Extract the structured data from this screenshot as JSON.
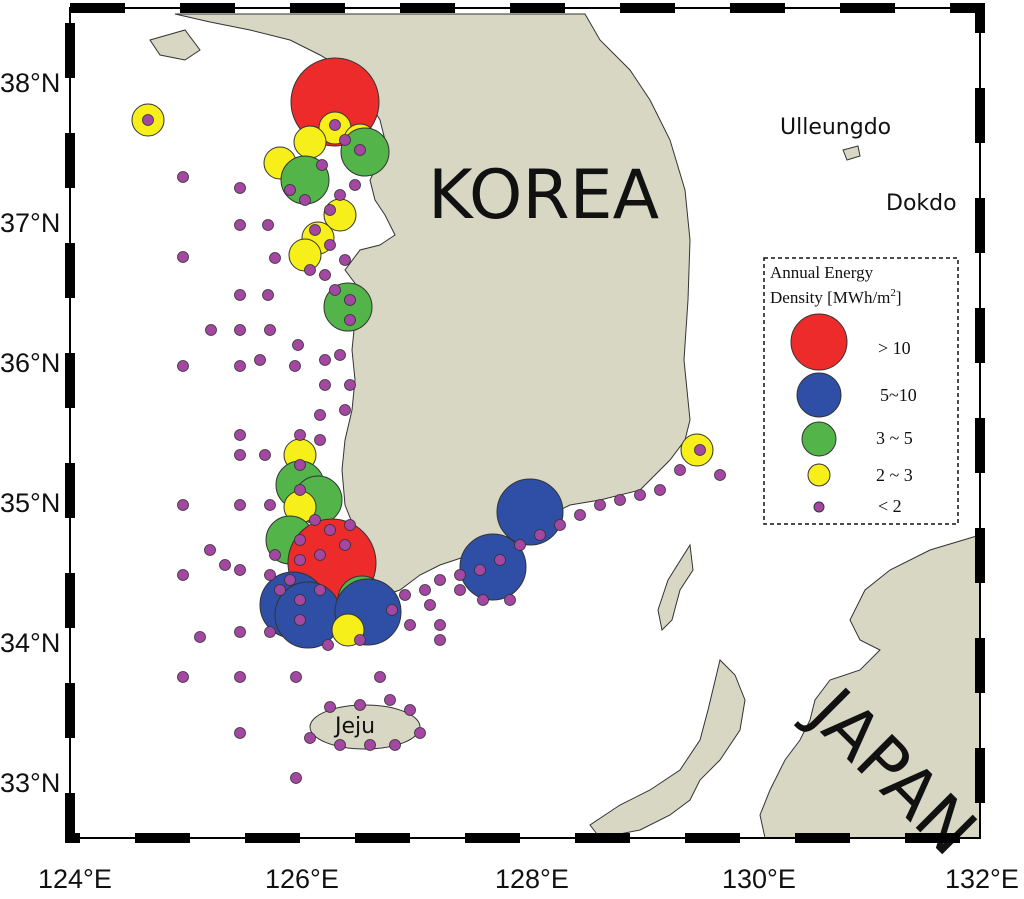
{
  "map": {
    "labels": {
      "korea": "KOREA",
      "japan": "JAPAN",
      "jeju": "Jeju",
      "ulleungdo": "Ulleungdo",
      "dokdo": "Dokdo"
    },
    "axes": {
      "lat_ticks": [
        "38°N",
        "37°N",
        "36°N",
        "35°N",
        "34°N",
        "33°N"
      ],
      "lon_ticks": [
        "124°E",
        "126°E",
        "128°E",
        "130°E",
        "132°E"
      ],
      "lon_range": [
        124,
        132
      ],
      "lat_range": [
        32.6,
        38.5
      ]
    },
    "colors": {
      "land": "#d7d7c4",
      "sea": "#ffffff",
      "red": "#ee2b2b",
      "blue": "#2f4fa6",
      "green": "#53b44a",
      "yellow": "#f7ef1a",
      "purple": "#a447a2"
    },
    "legend": {
      "title_line1": "Annual Energy",
      "title_line2": "Density [MWh/m",
      "title_sup": "2",
      "title_end": "]",
      "items": [
        {
          "label": ">  10",
          "class": "red"
        },
        {
          "label": "5~10",
          "class": "blue"
        },
        {
          "label": "3 ~ 5",
          "class": "green"
        },
        {
          "label": "2 ~ 3",
          "class": "yellow"
        },
        {
          "label": "<   2",
          "class": "purple"
        }
      ]
    }
  }
}
